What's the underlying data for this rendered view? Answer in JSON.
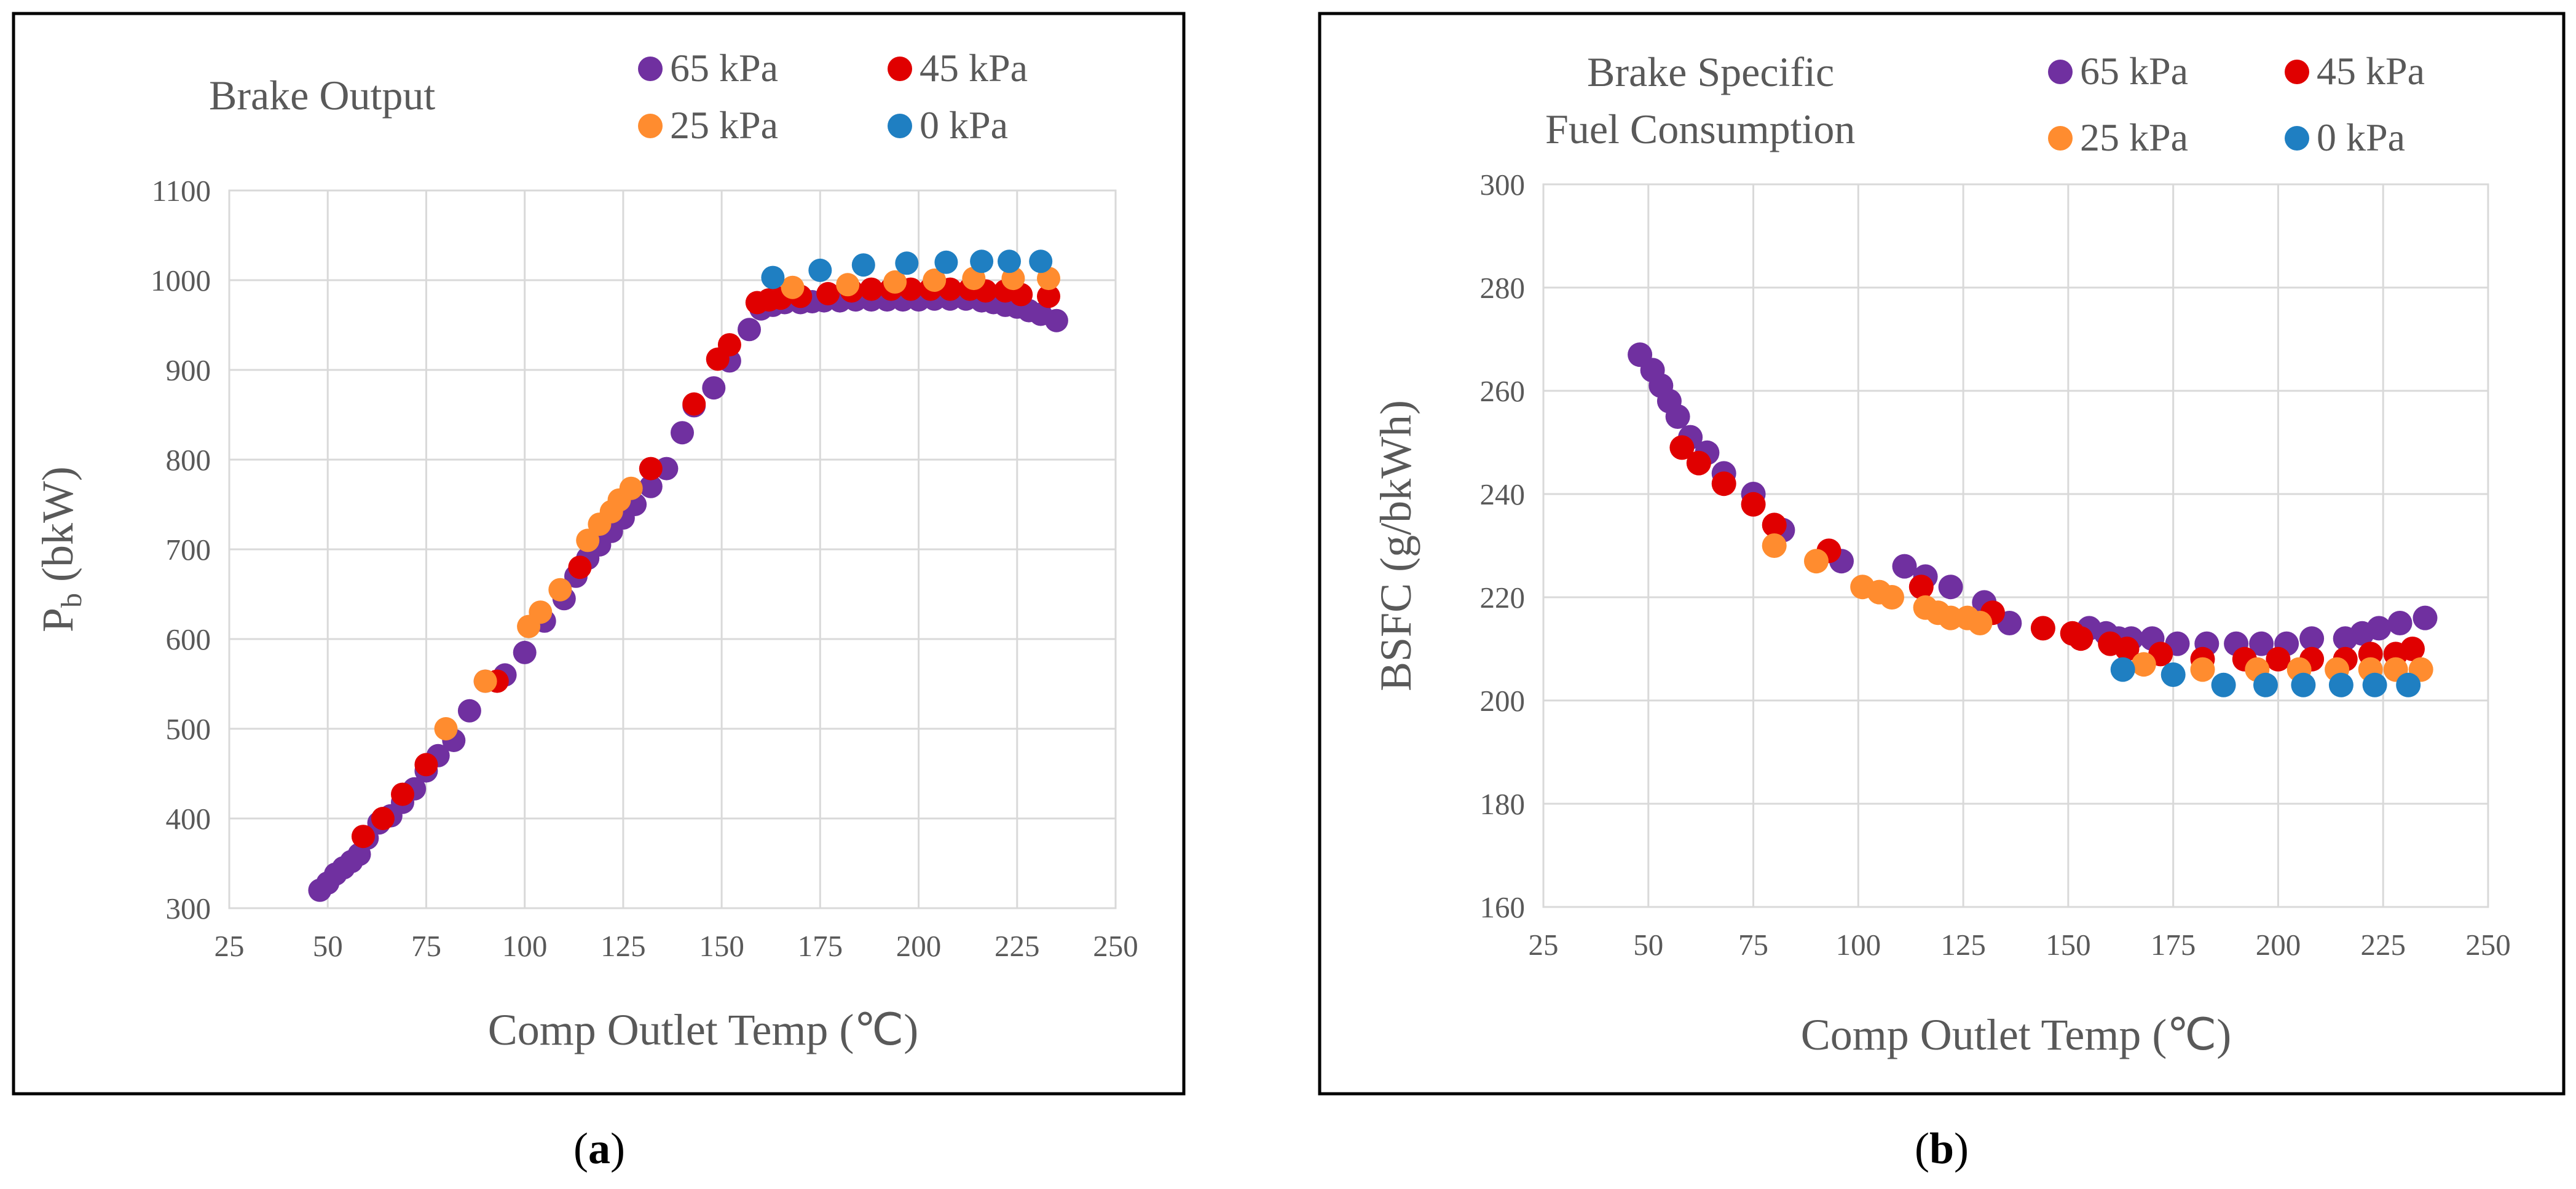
{
  "colors": {
    "s65": "#7030a0",
    "s45": "#e00000",
    "s25": "#ff8c2f",
    "s0": "#1f7fc2",
    "text": "#595959",
    "grid": "#d9d9d9"
  },
  "chart_data": [
    {
      "type": "scatter",
      "panel": "a",
      "caption_letter": "a",
      "title": "Brake Output",
      "xlabel": "Comp Outlet Temp (℃)",
      "ylabel_main": "P",
      "ylabel_sub": "b",
      "ylabel_unit": " (bkW)",
      "xlim": [
        25,
        250
      ],
      "ylim": [
        300,
        1100
      ],
      "xticks": [
        "25",
        "50",
        "75",
        "100",
        "125",
        "150",
        "175",
        "200",
        "225",
        "250"
      ],
      "yticks": [
        "300",
        "400",
        "500",
        "600",
        "700",
        "800",
        "900",
        "1000",
        "1100"
      ],
      "legend_position": "top-right",
      "series": [
        {
          "name": "65 kPa",
          "color_key": "s65",
          "x": [
            48,
            50,
            52,
            54,
            56,
            58,
            60,
            63,
            66,
            69,
            72,
            75,
            78,
            82,
            86,
            90,
            95,
            100,
            105,
            110,
            113,
            116,
            119,
            122,
            125,
            128,
            132,
            136,
            140,
            143,
            148,
            152,
            157,
            160,
            163,
            166,
            170,
            173,
            176,
            180,
            184,
            188,
            192,
            196,
            200,
            204,
            208,
            212,
            216,
            219,
            222,
            225,
            228,
            231,
            235
          ],
          "y": [
            320,
            328,
            338,
            345,
            352,
            360,
            378,
            395,
            403,
            418,
            433,
            453,
            470,
            487,
            520,
            553,
            560,
            585,
            620,
            645,
            670,
            690,
            705,
            720,
            735,
            750,
            770,
            790,
            830,
            860,
            880,
            910,
            945,
            968,
            972,
            975,
            975,
            976,
            977,
            977,
            978,
            978,
            978,
            978,
            978,
            979,
            979,
            979,
            977,
            975,
            972,
            970,
            966,
            962,
            955
          ]
        },
        {
          "name": "45 kPa",
          "color_key": "s45",
          "x": [
            59,
            64,
            69,
            75,
            93,
            114,
            132,
            143,
            149,
            152,
            159,
            162,
            165,
            170,
            177,
            183,
            188,
            193,
            198,
            203,
            208,
            213,
            217,
            222,
            226,
            233
          ],
          "y": [
            380,
            400,
            427,
            460,
            553,
            680,
            790,
            862,
            912,
            928,
            975,
            978,
            980,
            982,
            985,
            988,
            990,
            990,
            990,
            990,
            990,
            990,
            988,
            988,
            984,
            982
          ]
        },
        {
          "name": "25 kPa",
          "color_key": "s25",
          "x": [
            80,
            90,
            101,
            104,
            109,
            116,
            119,
            122,
            124,
            127,
            168,
            182,
            194,
            204,
            214,
            224,
            233
          ],
          "y": [
            500,
            553,
            614,
            630,
            655,
            710,
            728,
            742,
            755,
            768,
            992,
            995,
            998,
            1000,
            1002,
            1002,
            1002
          ]
        },
        {
          "name": "0 kPa",
          "color_key": "s0",
          "x": [
            163,
            175,
            186,
            197,
            207,
            216,
            223,
            231
          ],
          "y": [
            1003,
            1011,
            1017,
            1019,
            1020,
            1021,
            1021,
            1021
          ]
        }
      ]
    },
    {
      "type": "scatter",
      "panel": "b",
      "caption_letter": "b",
      "title_line1": "Brake Specific",
      "title_line2": "Fuel Consumption",
      "xlabel": "Comp Outlet Temp (℃)",
      "ylabel": "BSFC (g/bkWh)",
      "xlim": [
        25,
        250
      ],
      "ylim": [
        160,
        300
      ],
      "xticks": [
        "25",
        "50",
        "75",
        "100",
        "125",
        "150",
        "175",
        "200",
        "225",
        "250"
      ],
      "yticks": [
        "160",
        "180",
        "200",
        "220",
        "240",
        "260",
        "280",
        "300"
      ],
      "legend_position": "top-right",
      "series": [
        {
          "name": "65 kPa",
          "color_key": "s65",
          "x": [
            48,
            51,
            53,
            55,
            57,
            60,
            64,
            68,
            75,
            82,
            96,
            111,
            116,
            122,
            130,
            136,
            155,
            159,
            162,
            165,
            170,
            176,
            183,
            190,
            196,
            202,
            208,
            216,
            220,
            224,
            229,
            235
          ],
          "y": [
            267,
            264,
            261,
            258,
            255,
            251,
            248,
            244,
            240,
            233,
            227,
            226,
            224,
            222,
            219,
            215,
            214,
            213,
            212,
            212,
            212,
            211,
            211,
            211,
            211,
            211,
            212,
            212,
            213,
            214,
            215,
            216
          ]
        },
        {
          "name": "45 kPa",
          "color_key": "s45",
          "x": [
            58,
            62,
            68,
            75,
            80,
            93,
            115,
            132,
            144,
            151,
            153,
            160,
            164,
            172,
            182,
            192,
            200,
            208,
            216,
            222,
            228,
            232
          ],
          "y": [
            249,
            246,
            242,
            238,
            234,
            229,
            222,
            217,
            214,
            213,
            212,
            211,
            210,
            209,
            208,
            208,
            208,
            208,
            208,
            209,
            209,
            210
          ]
        },
        {
          "name": "25 kPa",
          "color_key": "s25",
          "x": [
            80,
            90,
            101,
            105,
            108,
            116,
            119,
            122,
            126,
            129,
            168,
            182,
            195,
            205,
            214,
            222,
            228,
            234
          ],
          "y": [
            230,
            227,
            222,
            221,
            220,
            218,
            217,
            216,
            216,
            215,
            207,
            206,
            206,
            206,
            206,
            206,
            206,
            206
          ]
        },
        {
          "name": "0 kPa",
          "color_key": "s0",
          "x": [
            163,
            175,
            187,
            197,
            206,
            215,
            223,
            231
          ],
          "y": [
            206,
            205,
            203,
            203,
            203,
            203,
            203,
            203
          ]
        }
      ]
    }
  ]
}
